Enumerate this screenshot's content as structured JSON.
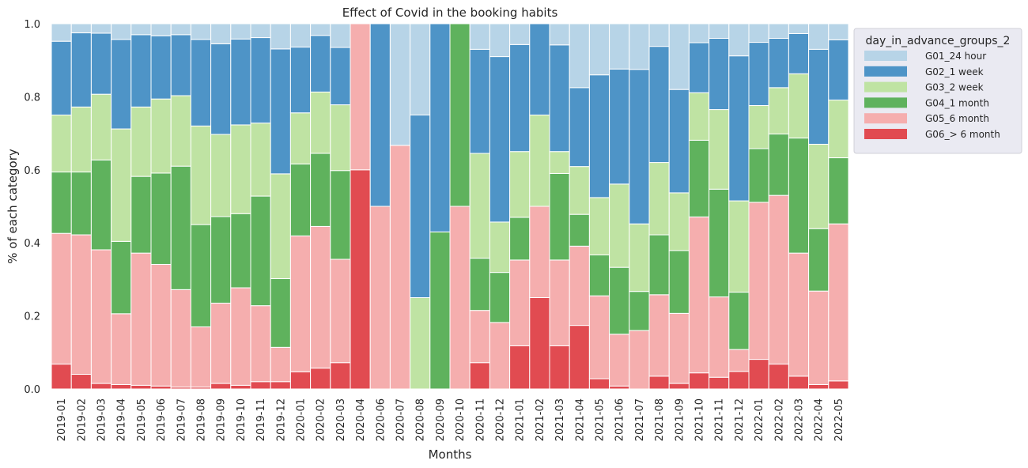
{
  "chart_data": {
    "type": "bar",
    "stacked": true,
    "normalized": true,
    "title": "Effect of Covid in the booking habits",
    "xlabel": "Months",
    "ylabel": "% of each category",
    "ylim": [
      0,
      1
    ],
    "yticks": [
      "0.0",
      "0.2",
      "0.4",
      "0.6",
      "0.8",
      "1.0"
    ],
    "grid": false,
    "legend": {
      "title": "day_in_advance_groups_2",
      "position": "outside-right"
    },
    "categories": [
      "2019-01",
      "2019-02",
      "2019-03",
      "2019-04",
      "2019-05",
      "2019-06",
      "2019-07",
      "2019-08",
      "2019-09",
      "2019-10",
      "2019-11",
      "2019-12",
      "2020-01",
      "2020-02",
      "2020-03",
      "2020-04",
      "2020-06",
      "2020-07",
      "2020-08",
      "2020-09",
      "2020-10",
      "2020-11",
      "2020-12",
      "2021-01",
      "2021-02",
      "2021-03",
      "2021-04",
      "2021-05",
      "2021-06",
      "2021-07",
      "2021-08",
      "2021-09",
      "2021-10",
      "2021-11",
      "2021-12",
      "2022-01",
      "2022-02",
      "2022-03",
      "2022-04",
      "2022-05"
    ],
    "series": [
      {
        "name": "G06_> 6 month",
        "color": "#e14b51",
        "values": [
          0.068,
          0.04,
          0.015,
          0.012,
          0.01,
          0.008,
          0.005,
          0.005,
          0.015,
          0.01,
          0.02,
          0.02,
          0.047,
          0.057,
          0.072,
          0.6,
          0,
          0,
          0,
          0,
          0,
          0.072,
          0,
          0.118,
          0.25,
          0.118,
          0.174,
          0.028,
          0.008,
          0,
          0.035,
          0.015,
          0.044,
          0.032,
          0.048,
          0.081,
          0.068,
          0.035,
          0.012,
          0.022
        ]
      },
      {
        "name": "G05_6 month",
        "color": "#f5aeae",
        "values": [
          0.358,
          0.382,
          0.366,
          0.194,
          0.362,
          0.333,
          0.267,
          0.165,
          0.22,
          0.267,
          0.208,
          0.094,
          0.372,
          0.388,
          0.283,
          0.4,
          0.5,
          0.667,
          0,
          0,
          0.5,
          0.143,
          0.182,
          0.235,
          0.25,
          0.235,
          0.217,
          0.227,
          0.142,
          0.16,
          0.223,
          0.192,
          0.427,
          0.22,
          0.06,
          0.43,
          0.462,
          0.337,
          0.256,
          0.43
        ]
      },
      {
        "name": "G04_1 month",
        "color": "#5fb25d",
        "values": [
          0.168,
          0.172,
          0.246,
          0.198,
          0.21,
          0.25,
          0.338,
          0.28,
          0.237,
          0.203,
          0.3,
          0.188,
          0.197,
          0.2,
          0.243,
          0,
          0,
          0,
          0,
          0.43,
          0.5,
          0.143,
          0.137,
          0.117,
          0,
          0.237,
          0.087,
          0.112,
          0.183,
          0.107,
          0.164,
          0.172,
          0.21,
          0.295,
          0.157,
          0.147,
          0.168,
          0.315,
          0.171,
          0.181
        ]
      },
      {
        "name": "G03_2 week",
        "color": "#bfe3a3",
        "values": [
          0.156,
          0.178,
          0.18,
          0.308,
          0.19,
          0.203,
          0.193,
          0.27,
          0.225,
          0.243,
          0.2,
          0.287,
          0.14,
          0.168,
          0.18,
          0,
          0,
          0,
          0.25,
          0,
          0,
          0.287,
          0.138,
          0.18,
          0.25,
          0.06,
          0.131,
          0.157,
          0.228,
          0.185,
          0.198,
          0.158,
          0.13,
          0.218,
          0.25,
          0.118,
          0.127,
          0.176,
          0.231,
          0.158
        ]
      },
      {
        "name": "G02_1 week",
        "color": "#4e94c7",
        "values": [
          0.202,
          0.203,
          0.167,
          0.245,
          0.198,
          0.173,
          0.167,
          0.237,
          0.248,
          0.235,
          0.234,
          0.342,
          0.18,
          0.155,
          0.157,
          0,
          0.5,
          0,
          0.5,
          0.57,
          0,
          0.285,
          0.453,
          0.293,
          0.25,
          0.292,
          0.216,
          0.336,
          0.315,
          0.423,
          0.318,
          0.283,
          0.137,
          0.195,
          0.397,
          0.173,
          0.135,
          0.11,
          0.26,
          0.165
        ]
      },
      {
        "name": "G01_24 hour",
        "color": "#b7d4e7",
        "values": [
          0.048,
          0.025,
          0.026,
          0.043,
          0.03,
          0.033,
          0.03,
          0.043,
          0.055,
          0.042,
          0.038,
          0.069,
          0.064,
          0.032,
          0.065,
          0,
          0,
          0.333,
          0.25,
          0,
          0,
          0.07,
          0.09,
          0.057,
          0,
          0.058,
          0.175,
          0.14,
          0.124,
          0.125,
          0.062,
          0.18,
          0.052,
          0.04,
          0.088,
          0.051,
          0.04,
          0.027,
          0.07,
          0.044
        ]
      }
    ]
  }
}
